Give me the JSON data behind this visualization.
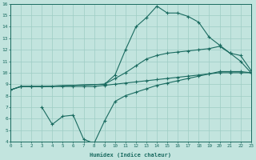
{
  "bg_color": "#c2e4de",
  "grid_color": "#9dccc4",
  "line_color": "#1a6b60",
  "xlabel": "Humidex (Indice chaleur)",
  "xlim": [
    0,
    23
  ],
  "ylim": [
    4,
    16
  ],
  "xticks": [
    0,
    1,
    2,
    3,
    4,
    5,
    6,
    7,
    8,
    9,
    10,
    11,
    12,
    13,
    14,
    15,
    16,
    17,
    18,
    19,
    20,
    21,
    22,
    23
  ],
  "yticks": [
    4,
    5,
    6,
    7,
    8,
    9,
    10,
    11,
    12,
    13,
    14,
    15,
    16
  ],
  "line_straight_x": [
    0,
    1,
    2,
    3,
    4,
    5,
    6,
    7,
    8,
    9,
    10,
    11,
    12,
    13,
    14,
    15,
    16,
    17,
    18,
    19,
    20,
    21,
    22,
    23
  ],
  "line_straight_y": [
    8.5,
    8.8,
    8.8,
    8.8,
    8.8,
    8.8,
    8.8,
    8.8,
    8.8,
    8.9,
    9.0,
    9.1,
    9.2,
    9.3,
    9.4,
    9.5,
    9.6,
    9.7,
    9.8,
    9.9,
    10.0,
    10.0,
    10.0,
    10.0
  ],
  "line_peak_x": [
    0,
    1,
    2,
    3,
    9,
    10,
    11,
    12,
    13,
    14,
    15,
    16,
    17,
    18,
    19,
    20,
    21,
    22,
    23
  ],
  "line_peak_y": [
    8.5,
    8.8,
    8.8,
    8.8,
    9.0,
    9.8,
    12.0,
    14.0,
    14.8,
    15.8,
    15.2,
    15.2,
    14.9,
    14.4,
    13.1,
    12.4,
    11.7,
    11.0,
    10.0
  ],
  "line_mid_x": [
    0,
    1,
    2,
    3,
    9,
    10,
    11,
    12,
    13,
    14,
    15,
    16,
    17,
    18,
    19,
    20,
    21,
    22,
    23
  ],
  "line_mid_y": [
    8.5,
    8.8,
    8.8,
    8.8,
    9.0,
    9.5,
    10.0,
    10.6,
    11.2,
    11.5,
    11.7,
    11.8,
    11.9,
    12.0,
    12.1,
    12.3,
    11.7,
    11.5,
    10.2
  ],
  "line_dip_x": [
    3,
    4,
    5,
    6,
    7,
    8,
    9,
    10,
    11,
    12,
    13,
    14,
    15,
    16,
    17,
    18,
    19,
    20,
    21,
    22,
    23
  ],
  "line_dip_y": [
    7.0,
    5.5,
    6.2,
    6.3,
    4.2,
    3.85,
    5.8,
    7.5,
    8.0,
    8.3,
    8.6,
    8.9,
    9.1,
    9.3,
    9.5,
    9.7,
    9.9,
    10.1,
    10.1,
    10.1,
    10.0
  ]
}
